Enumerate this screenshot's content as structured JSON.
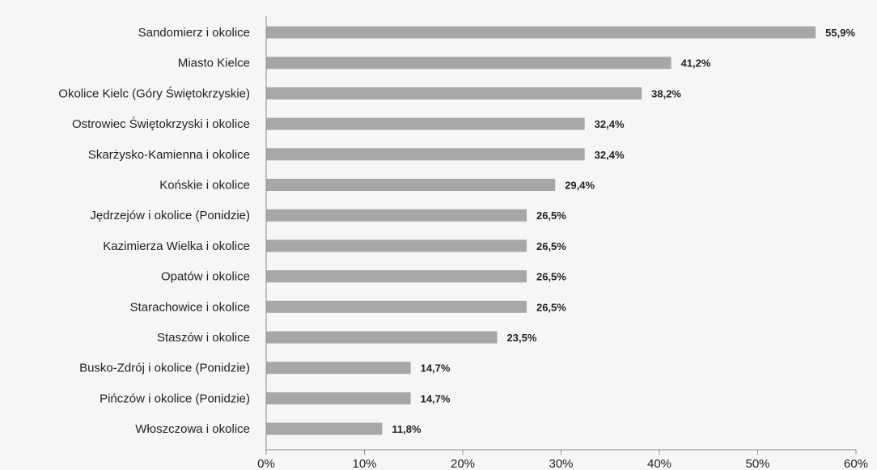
{
  "chart_data": {
    "type": "bar",
    "orientation": "horizontal",
    "categories": [
      "Sandomierz i okolice",
      "Miasto Kielce",
      "Okolice Kielc (Góry Świętokrzyskie)",
      "Ostrowiec Świętokrzyski i okolice",
      "Skarżysko-Kamienna i okolice",
      "Końskie i okolice",
      "Jędrzejów i okolice (Ponidzie)",
      "Kazimierza Wielka i okolice",
      "Opatów i okolice",
      "Starachowice i okolice",
      "Staszów i okolice",
      "Busko-Zdrój i okolice (Ponidzie)",
      "Pińczów i okolice (Ponidzie)",
      "Włoszczowa i okolice"
    ],
    "values": [
      55.9,
      41.2,
      38.2,
      32.4,
      32.4,
      29.4,
      26.5,
      26.5,
      26.5,
      26.5,
      23.5,
      14.7,
      14.7,
      11.8
    ],
    "value_labels": [
      "55,9%",
      "41,2%",
      "38,2%",
      "32,4%",
      "32,4%",
      "29,4%",
      "26,5%",
      "26,5%",
      "26,5%",
      "26,5%",
      "23,5%",
      "14,7%",
      "14,7%",
      "11,8%"
    ],
    "xlim": [
      0,
      60
    ],
    "xticks": [
      0,
      10,
      20,
      30,
      40,
      50,
      60
    ],
    "xtick_labels": [
      "0%",
      "10%",
      "20%",
      "30%",
      "40%",
      "50%",
      "60%"
    ],
    "grid": false,
    "legend": "none",
    "colors": {
      "bar": "#a7a7a7",
      "axis": "#8c8c8c",
      "background": "#f6f6f6"
    }
  }
}
